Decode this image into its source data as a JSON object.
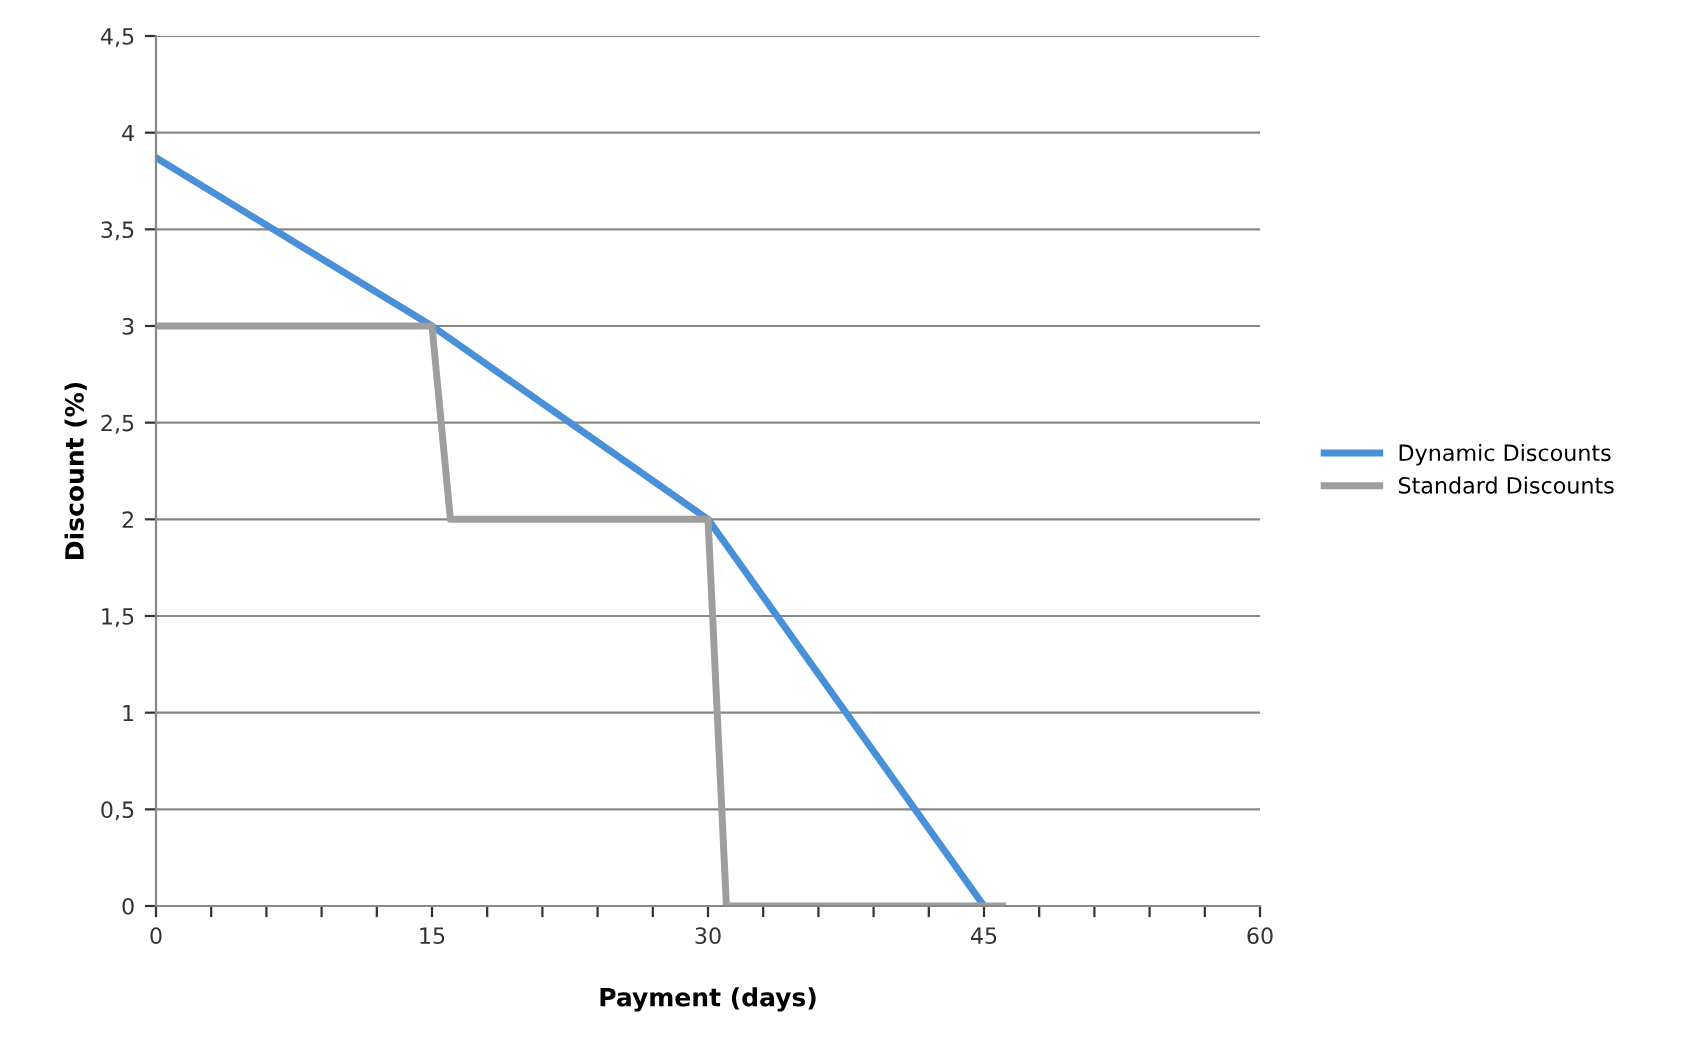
{
  "chart_data": {
    "type": "line",
    "xlabel": "Payment (days)",
    "ylabel": "Discount (%)",
    "series": [
      {
        "name": "Dynamic Discounts",
        "color": "#4a90d9",
        "x": [
          0,
          15,
          30,
          45
        ],
        "values": [
          3.87,
          3,
          2,
          0
        ]
      },
      {
        "name": "Standard Discounts",
        "color": "#9e9e9e",
        "x": [
          0,
          15,
          16,
          30,
          31,
          46
        ],
        "values": [
          3,
          3,
          2,
          2,
          0,
          0
        ]
      }
    ],
    "xlim": [
      0,
      60
    ],
    "xticks": [
      0,
      {
        "value": 3,
        "label": null
      },
      {
        "value": 6,
        "label": null
      },
      {
        "value": 9,
        "label": null
      },
      {
        "value": 12,
        "label": null
      },
      15,
      {
        "value": 18,
        "label": null
      },
      {
        "value": 21,
        "label": null
      },
      {
        "value": 24,
        "label": null
      },
      {
        "value": 27,
        "label": null
      },
      30,
      {
        "value": 33,
        "label": null
      },
      {
        "value": 36,
        "label": null
      },
      {
        "value": 39,
        "label": null
      },
      {
        "value": 42,
        "label": null
      },
      45,
      {
        "value": 48,
        "label": null
      },
      {
        "value": 51,
        "label": null
      },
      {
        "value": 54,
        "label": null
      },
      {
        "value": 57,
        "label": null
      },
      60
    ],
    "ylim": [
      0,
      4.5
    ],
    "yticks": [
      0,
      {
        "value": 0.5,
        "label": "0,5"
      },
      1,
      {
        "value": 1.5,
        "label": "1,5"
      },
      2,
      {
        "value": 2.5,
        "label": "2,5"
      },
      3,
      {
        "value": 3.5,
        "label": "3,5"
      },
      4,
      {
        "value": 4.5,
        "label": "4,5"
      }
    ],
    "grid": "y",
    "legend": "right",
    "marker": "none",
    "line_style": "solid"
  }
}
